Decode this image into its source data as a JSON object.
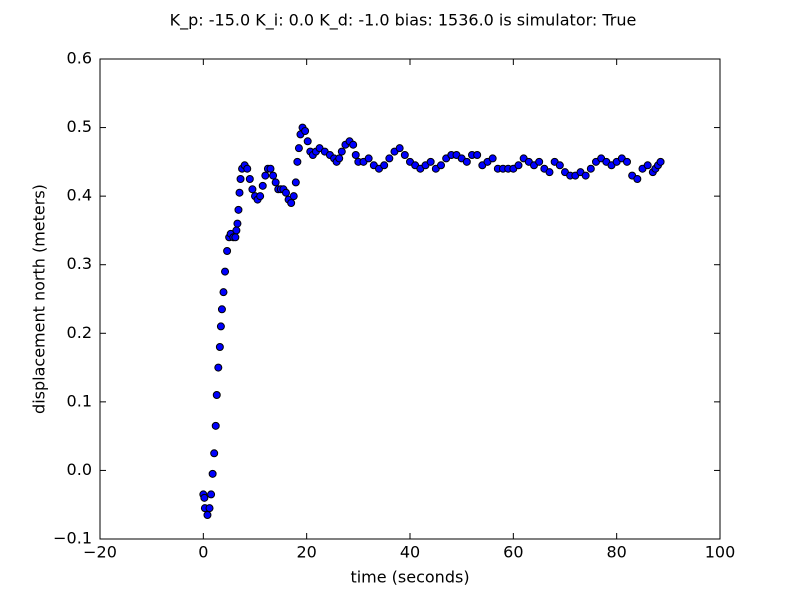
{
  "chart_data": {
    "type": "scatter",
    "title": "K_p: -15.0 K_i: 0.0 K_d: -1.0 bias: 1536.0 is simulator: True",
    "x_label": "time (seconds)",
    "y_label": "displacement north (meters)",
    "xlim": [
      -20,
      100
    ],
    "ylim": [
      -0.1,
      0.6
    ],
    "xticks": [
      {
        "value": -20,
        "label": "−20"
      },
      0,
      20,
      40,
      60,
      80,
      100
    ],
    "yticks": [
      {
        "value": -0.1,
        "label": "−0.1"
      },
      {
        "value": 0,
        "label": "0.0"
      },
      0.1,
      0.2,
      0.3,
      0.4,
      0.5,
      0.6
    ],
    "grid": false,
    "series": [
      {
        "color": "#0000ff",
        "x": [
          0,
          0.2,
          0.3,
          0.8,
          1.2,
          1.5,
          1.8,
          2.1,
          2.4,
          2.6,
          2.9,
          3.2,
          3.4,
          3.6,
          3.9,
          4.2,
          4.6,
          5,
          5.3,
          5.8,
          6.2,
          6.4,
          6.6,
          6.8,
          7,
          7.2,
          7.5,
          8,
          8.5,
          9,
          9.5,
          10,
          10.5,
          11,
          11.5,
          12,
          12.5,
          13,
          13.5,
          14,
          14.5,
          15,
          15.5,
          16,
          16.5,
          17,
          17.5,
          17.9,
          18.2,
          18.5,
          18.8,
          19.2,
          19.7,
          20.2,
          20.7,
          21.2,
          21.8,
          22.5,
          23.5,
          24.5,
          25.3,
          25.8,
          26.3,
          26.8,
          27.5,
          28.3,
          29,
          29.5,
          30,
          31,
          32,
          33,
          34,
          35,
          36,
          37,
          38,
          39,
          40,
          41,
          42,
          43,
          44,
          45,
          46,
          47,
          48,
          49,
          50,
          51,
          52,
          53,
          54,
          55,
          56,
          57,
          58,
          59,
          60,
          61,
          62,
          63,
          64,
          65,
          66,
          67,
          68,
          69,
          70,
          71,
          72,
          73,
          74,
          75,
          76,
          77,
          78,
          79,
          80,
          81,
          82,
          83,
          84,
          85,
          86,
          87,
          87.5,
          88,
          88.5
        ],
        "values": [
          -0.035,
          -0.04,
          -0.055,
          -0.065,
          -0.055,
          -0.035,
          -0.005,
          0.025,
          0.065,
          0.11,
          0.15,
          0.18,
          0.21,
          0.235,
          0.26,
          0.29,
          0.32,
          0.34,
          0.345,
          0.34,
          0.34,
          0.35,
          0.36,
          0.38,
          0.405,
          0.425,
          0.44,
          0.445,
          0.44,
          0.425,
          0.41,
          0.4,
          0.395,
          0.4,
          0.415,
          0.43,
          0.44,
          0.44,
          0.43,
          0.42,
          0.41,
          0.41,
          0.41,
          0.405,
          0.395,
          0.39,
          0.4,
          0.42,
          0.45,
          0.47,
          0.49,
          0.5,
          0.495,
          0.48,
          0.465,
          0.46,
          0.465,
          0.47,
          0.465,
          0.46,
          0.455,
          0.45,
          0.455,
          0.465,
          0.475,
          0.48,
          0.475,
          0.46,
          0.45,
          0.45,
          0.455,
          0.445,
          0.44,
          0.445,
          0.455,
          0.465,
          0.47,
          0.46,
          0.45,
          0.445,
          0.44,
          0.445,
          0.45,
          0.44,
          0.445,
          0.455,
          0.46,
          0.46,
          0.455,
          0.45,
          0.46,
          0.46,
          0.445,
          0.45,
          0.455,
          0.44,
          0.44,
          0.44,
          0.44,
          0.445,
          0.455,
          0.45,
          0.445,
          0.45,
          0.44,
          0.435,
          0.45,
          0.445,
          0.435,
          0.43,
          0.43,
          0.435,
          0.43,
          0.44,
          0.45,
          0.455,
          0.45,
          0.445,
          0.45,
          0.455,
          0.45,
          0.43,
          0.425,
          0.44,
          0.445,
          0.435,
          0.44,
          0.445,
          0.45
        ]
      }
    ]
  }
}
